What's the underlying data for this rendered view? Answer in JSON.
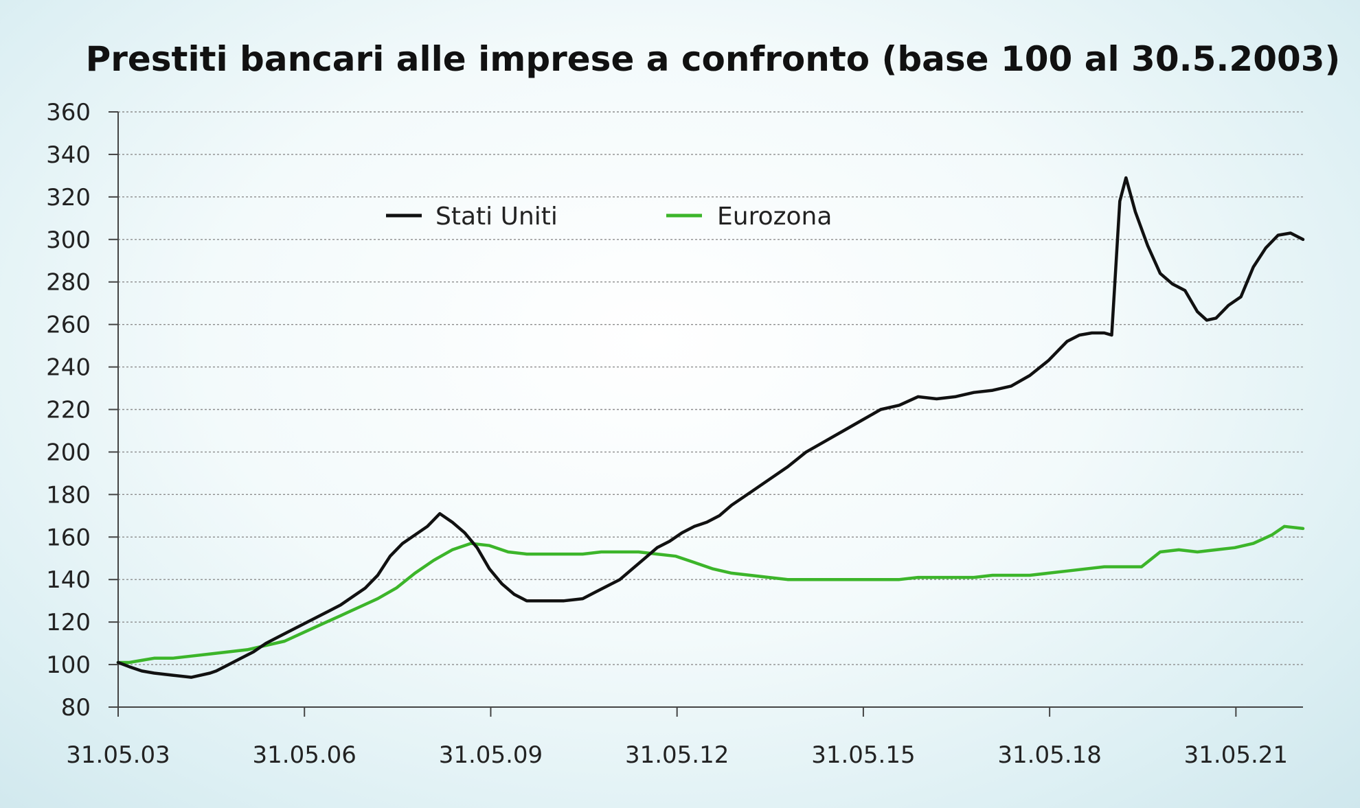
{
  "chart_data": {
    "type": "line",
    "title": "Prestiti bancari alle imprese a confronto (base 100 al 30.5.2003)",
    "xlabel": "",
    "ylabel": "",
    "ylim": [
      80,
      360
    ],
    "yticks": [
      80,
      100,
      120,
      140,
      160,
      180,
      200,
      220,
      240,
      260,
      280,
      300,
      320,
      340,
      360
    ],
    "xticks": [
      {
        "label": "31.05.03",
        "year": 2003.42
      },
      {
        "label": "31.05.06",
        "year": 2006.42
      },
      {
        "label": "31.05.09",
        "year": 2009.42
      },
      {
        "label": "31.05.12",
        "year": 2012.42
      },
      {
        "label": "31.05.15",
        "year": 2015.42
      },
      {
        "label": "31.05.18",
        "year": 2018.42
      },
      {
        "label": "31.05.21",
        "year": 2021.42
      }
    ],
    "xlim": [
      2003.42,
      2022.5
    ],
    "grid": true,
    "legend_position": "top-left",
    "series": [
      {
        "name": "Stati Uniti",
        "color": "#111111",
        "x": [
          2003.42,
          2003.6,
          2003.8,
          2004.0,
          2004.3,
          2004.6,
          2004.9,
          2005.0,
          2005.2,
          2005.4,
          2005.6,
          2005.8,
          2006.0,
          2006.2,
          2006.4,
          2006.6,
          2006.8,
          2007.0,
          2007.2,
          2007.4,
          2007.6,
          2007.8,
          2008.0,
          2008.2,
          2008.4,
          2008.6,
          2008.8,
          2009.0,
          2009.2,
          2009.4,
          2009.6,
          2009.8,
          2010.0,
          2010.3,
          2010.6,
          2010.9,
          2011.1,
          2011.3,
          2011.5,
          2011.7,
          2011.9,
          2012.1,
          2012.3,
          2012.5,
          2012.7,
          2012.9,
          2013.1,
          2013.3,
          2013.6,
          2013.9,
          2014.2,
          2014.5,
          2014.8,
          2015.1,
          2015.4,
          2015.7,
          2016.0,
          2016.3,
          2016.6,
          2016.9,
          2017.2,
          2017.5,
          2017.8,
          2018.1,
          2018.4,
          2018.7,
          2018.9,
          2019.1,
          2019.3,
          2019.42,
          2019.55,
          2019.65,
          2019.8,
          2020.0,
          2020.2,
          2020.4,
          2020.6,
          2020.8,
          2020.95,
          2021.1,
          2021.3,
          2021.5,
          2021.7,
          2021.9,
          2022.1,
          2022.3,
          2022.5
        ],
        "values": [
          101,
          99,
          97,
          96,
          95,
          94,
          96,
          97,
          100,
          103,
          106,
          110,
          113,
          116,
          119,
          122,
          125,
          128,
          132,
          136,
          142,
          151,
          157,
          161,
          165,
          171,
          167,
          162,
          155,
          145,
          138,
          133,
          130,
          130,
          130,
          131,
          134,
          137,
          140,
          145,
          150,
          155,
          158,
          162,
          165,
          167,
          170,
          175,
          181,
          187,
          193,
          200,
          205,
          210,
          215,
          220,
          222,
          226,
          225,
          226,
          228,
          229,
          231,
          236,
          243,
          252,
          255,
          256,
          256,
          255,
          318,
          329,
          313,
          297,
          284,
          279,
          276,
          266,
          262,
          263,
          269,
          273,
          287,
          296,
          302,
          303,
          300
        ]
      },
      {
        "name": "Eurozona",
        "color": "#3cb52a",
        "x": [
          2003.42,
          2003.6,
          2003.8,
          2004.0,
          2004.3,
          2004.6,
          2004.9,
          2005.2,
          2005.5,
          2005.8,
          2006.1,
          2006.4,
          2006.7,
          2007.0,
          2007.3,
          2007.6,
          2007.9,
          2008.2,
          2008.5,
          2008.8,
          2009.1,
          2009.4,
          2009.7,
          2010.0,
          2010.3,
          2010.6,
          2010.9,
          2011.2,
          2011.5,
          2011.8,
          2012.1,
          2012.4,
          2012.7,
          2013.0,
          2013.3,
          2013.6,
          2013.9,
          2014.2,
          2014.5,
          2014.8,
          2015.1,
          2015.4,
          2015.7,
          2016.0,
          2016.3,
          2016.6,
          2016.9,
          2017.2,
          2017.5,
          2017.8,
          2018.1,
          2018.4,
          2018.7,
          2019.0,
          2019.3,
          2019.6,
          2019.9,
          2020.2,
          2020.5,
          2020.8,
          2021.1,
          2021.4,
          2021.7,
          2022.0,
          2022.2,
          2022.5
        ],
        "values": [
          101,
          101,
          102,
          103,
          103,
          104,
          105,
          106,
          107,
          109,
          111,
          115,
          119,
          123,
          127,
          131,
          136,
          143,
          149,
          154,
          157,
          156,
          153,
          152,
          152,
          152,
          152,
          153,
          153,
          153,
          152,
          151,
          148,
          145,
          143,
          142,
          141,
          140,
          140,
          140,
          140,
          140,
          140,
          140,
          141,
          141,
          141,
          141,
          142,
          142,
          142,
          143,
          144,
          145,
          146,
          146,
          146,
          153,
          154,
          153,
          154,
          155,
          157,
          161,
          165,
          164
        ]
      }
    ]
  }
}
